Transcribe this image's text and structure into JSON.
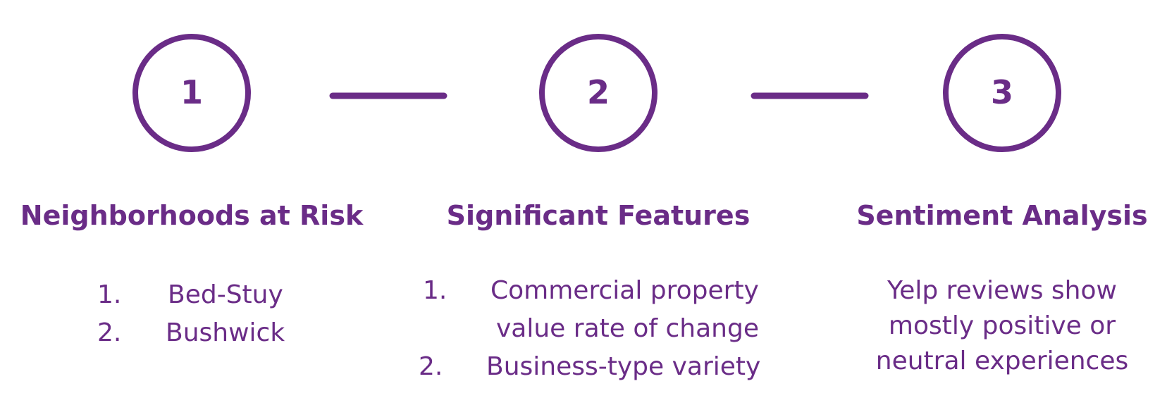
{
  "accent_color": "#6a2c87",
  "steps": [
    {
      "number": "1",
      "title": "Neighborhoods at Risk",
      "items": [
        {
          "num": "1.",
          "text": "Bed-Stuy"
        },
        {
          "num": "2.",
          "text": "Bushwick"
        }
      ]
    },
    {
      "number": "2",
      "title": "Significant Features",
      "items": [
        {
          "num": "1.",
          "line1": "Commercial property",
          "line2": "value rate of change"
        },
        {
          "num": "2.",
          "text": "Business-type variety"
        }
      ]
    },
    {
      "number": "3",
      "title": "Sentiment Analysis",
      "lines": [
        "Yelp reviews show",
        "mostly positive or",
        "neutral experiences"
      ]
    }
  ]
}
